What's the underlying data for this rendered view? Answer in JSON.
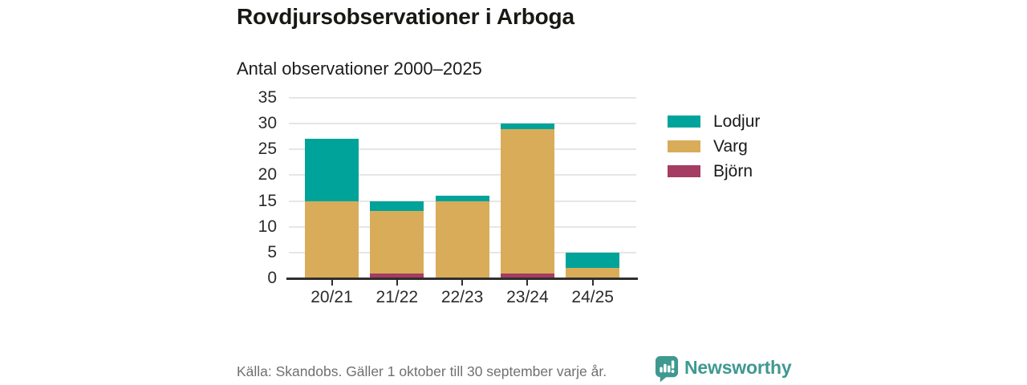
{
  "header": {
    "title": "Rovdjursobservationer i Arboga",
    "subtitle": "Antal observationer 2000–2025"
  },
  "chart_data": {
    "type": "bar",
    "stacked": true,
    "title": "Antal observationer 2000–2025",
    "xlabel": "",
    "ylabel": "",
    "categories": [
      "20/21",
      "21/22",
      "22/23",
      "23/24",
      "24/25"
    ],
    "series": [
      {
        "name": "Björn",
        "color": "#a53c61",
        "values": [
          0,
          1,
          0,
          1,
          0
        ]
      },
      {
        "name": "Varg",
        "color": "#d9ac5a",
        "values": [
          15,
          12,
          15,
          28,
          2
        ]
      },
      {
        "name": "Lodjur",
        "color": "#00a39a",
        "values": [
          12,
          2,
          1,
          1,
          3
        ]
      }
    ],
    "totals": [
      27,
      15,
      16,
      30,
      5
    ],
    "ylim": [
      0,
      35
    ],
    "yticks": [
      0,
      5,
      10,
      15,
      20,
      25,
      30,
      35
    ],
    "grid": "horizontal",
    "legend_position": "right",
    "legend_order": [
      "Lodjur",
      "Varg",
      "Björn"
    ]
  },
  "footer": {
    "source": "Källa: Skandobs. Gäller 1 oktober till 30 september varje år.",
    "brand": "Newsworthy"
  },
  "colors": {
    "lodjur": "#00a39a",
    "varg": "#d9ac5a",
    "bjorn": "#a53c61",
    "brand_teal": "#3e9990",
    "grid": "#e6e6e6",
    "axis": "#2e2e2e",
    "text_dark": "#1a1a1a",
    "text_muted": "#707070"
  }
}
